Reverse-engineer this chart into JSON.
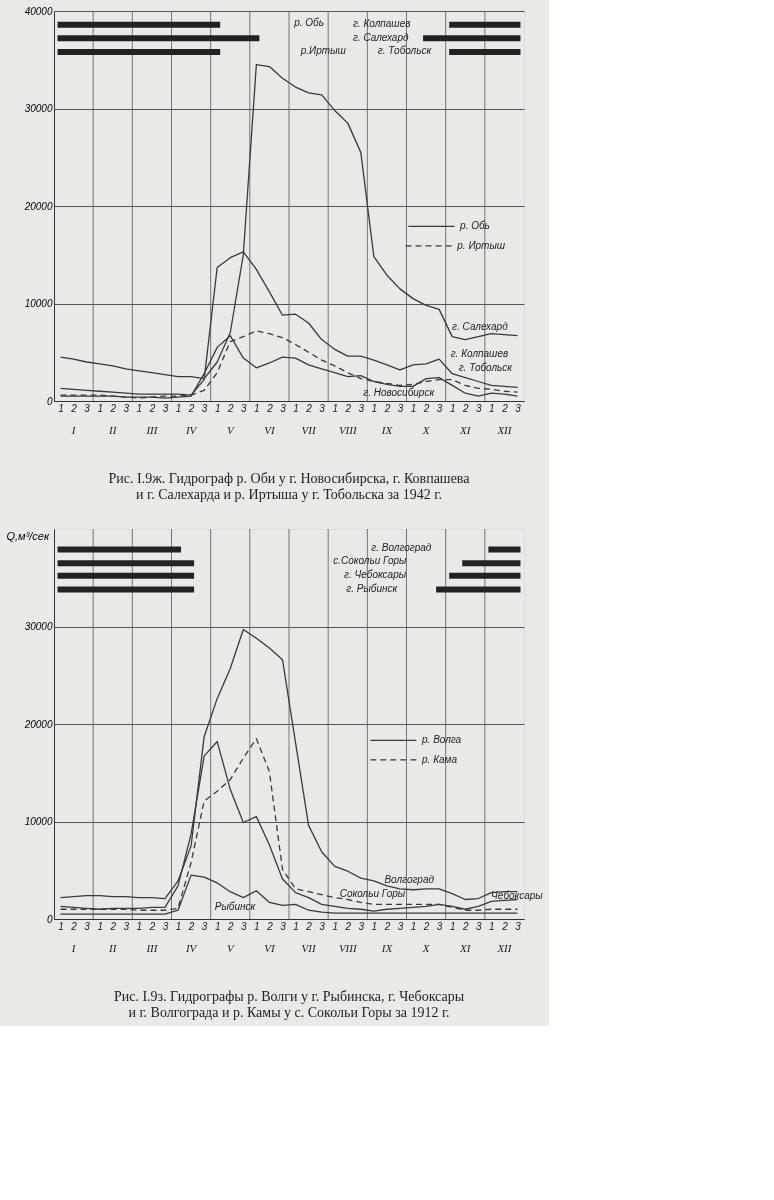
{
  "chart_data": [
    {
      "type": "line",
      "title": "Рис. I.9ж. Гидрограф р. Оби у г. Новосибирска, г. Ковпашева\nи г. Салехарда и р. Иртыша у г. Тобольска за 1942 г.",
      "categories": [
        "1",
        "2",
        "3",
        "1",
        "2",
        "3",
        "1",
        "2",
        "3",
        "1",
        "2",
        "3",
        "1",
        "2",
        "3",
        "1",
        "2",
        "3",
        "1",
        "2",
        "3",
        "1",
        "2",
        "3",
        "1",
        "2",
        "3",
        "1",
        "2",
        "3",
        "1",
        "2",
        "3",
        "1",
        "2",
        "3"
      ],
      "ylim": [
        0,
        40000
      ],
      "yticks": [
        0,
        10000,
        20000,
        30000,
        40000
      ],
      "grid": "y",
      "series": [
        {
          "line_style": "solid",
          "color": "#3a3a3a",
          "values": [
            4500,
            4300,
            4000,
            3800,
            3600,
            3300,
            3100,
            2900,
            2700,
            2500,
            2500,
            2300,
            4000,
            7000,
            15000,
            34500,
            34300,
            33100,
            32200,
            31600,
            31400,
            29800,
            28500,
            25500,
            14800,
            12900,
            11500,
            10500,
            9800,
            9400,
            6600,
            6300,
            6600,
            6900,
            6800,
            6700
          ]
        },
        {
          "line_style": "solid",
          "color": "#3a3a3a",
          "values": [
            1300,
            1200,
            1100,
            1000,
            900,
            800,
            700,
            700,
            700,
            700,
            600,
            2200,
            13700,
            14700,
            15300,
            13500,
            11200,
            8800,
            8900,
            8000,
            6300,
            5300,
            4600,
            4600,
            4200,
            3700,
            3200,
            3700,
            3800,
            4300,
            2800,
            2400,
            2000,
            1600,
            1500,
            1400
          ]
        },
        {
          "line_style": "solid",
          "color": "#3a3a3a",
          "values": [
            500,
            500,
            500,
            500,
            500,
            400,
            400,
            400,
            300,
            400,
            500,
            2800,
            5500,
            6700,
            4400,
            3400,
            3900,
            4500,
            4400,
            3700,
            3300,
            2900,
            2500,
            2600,
            2000,
            1700,
            1500,
            1500,
            2300,
            2400,
            1600,
            800,
            500,
            800,
            700,
            500
          ]
        },
        {
          "line_style": "dashed",
          "color": "#3a3a3a",
          "values": [
            600,
            600,
            600,
            600,
            500,
            400,
            300,
            400,
            500,
            500,
            600,
            1100,
            2900,
            6100,
            6600,
            7200,
            6900,
            6500,
            5800,
            5000,
            4200,
            3600,
            2900,
            2300,
            2000,
            1800,
            1600,
            1700,
            2000,
            2200,
            2200,
            1600,
            1300,
            1200,
            1000,
            900
          ]
        },
        {
          "color": "#222222",
          "values": [
            38600,
            38600,
            38600,
            38600,
            38600,
            38600,
            38600,
            38600,
            38600,
            38600,
            38600,
            38600,
            38600,
            null,
            null,
            null,
            null,
            null,
            null,
            null,
            null,
            null,
            null,
            null,
            null,
            null,
            null,
            null,
            null,
            null,
            38600,
            38600,
            38600,
            38600,
            38600,
            38600
          ]
        },
        {
          "color": "#222222",
          "values": [
            37200,
            37200,
            37200,
            37200,
            37200,
            37200,
            37200,
            37200,
            37200,
            37200,
            37200,
            37200,
            37200,
            37200,
            37200,
            37200,
            null,
            null,
            null,
            null,
            null,
            null,
            null,
            null,
            null,
            null,
            null,
            null,
            37200,
            37200,
            37200,
            37200,
            37200,
            37200,
            37200,
            37200
          ]
        },
        {
          "color": "#222222",
          "values": [
            35800,
            35800,
            35800,
            35800,
            35800,
            35800,
            35800,
            35800,
            35800,
            35800,
            35800,
            35800,
            35800,
            null,
            null,
            null,
            null,
            null,
            null,
            null,
            null,
            null,
            null,
            null,
            null,
            null,
            null,
            null,
            null,
            null,
            35800,
            35800,
            35800,
            35800,
            35800,
            35800
          ]
        }
      ],
      "annotations": [
        "р. Обь",
        "р. Иртыш",
        "г. Салехард",
        "г. Колпашев",
        "г. Тобольск",
        "г. Новосибирск",
        "р. Обь",
        "г. Колпашев",
        "г. Салехард",
        "р.Иртыш",
        "г. Тобольск",
        "I",
        "II",
        "III",
        "IV",
        "V",
        "VI",
        "VII",
        "VIII",
        "IX",
        "X",
        "XI",
        "XII"
      ]
    },
    {
      "type": "line",
      "title": "Рис. I.9з. Гидрографы р. Волги у г. Рыбинска, г. Чебоксары\nи г. Волгограда и р. Камы у с. Сокольи Горы за 1912 г.",
      "ylabel": "Q,м³/сек",
      "categories": [
        "1",
        "2",
        "3",
        "1",
        "2",
        "3",
        "1",
        "2",
        "3",
        "1",
        "2",
        "3",
        "1",
        "2",
        "3",
        "1",
        "2",
        "3",
        "1",
        "2",
        "3",
        "1",
        "2",
        "3",
        "1",
        "2",
        "3",
        "1",
        "2",
        "3",
        "1",
        "2",
        "3",
        "1",
        "2",
        "3"
      ],
      "ylim": [
        0,
        40000
      ],
      "yticks": [
        0,
        10000,
        20000,
        30000
      ],
      "grid": "y",
      "series": [
        {
          "line_style": "solid",
          "color": "#3a3a3a",
          "values": [
            2200,
            2300,
            2400,
            2400,
            2300,
            2300,
            2200,
            2200,
            2100,
            3900,
            7500,
            18700,
            22600,
            25700,
            29700,
            28800,
            27800,
            26600,
            18100,
            9600,
            6900,
            5400,
            4900,
            4200,
            3900,
            3400,
            3100,
            3000,
            3100,
            3100,
            2600,
            2000,
            2100,
            2700,
            2800,
            2800
          ]
        },
        {
          "line_style": "solid",
          "color": "#3a3a3a",
          "values": [
            1300,
            1200,
            1100,
            1000,
            1100,
            1100,
            1100,
            1200,
            1200,
            3400,
            8700,
            16700,
            18200,
            13300,
            9900,
            10500,
            7600,
            4100,
            2700,
            2200,
            1500,
            1300,
            1100,
            1000,
            800,
            1000,
            1100,
            1200,
            1300,
            1500,
            1300,
            1000,
            1300,
            1800,
            1900,
            2000
          ]
        },
        {
          "line_style": "dashed",
          "color": "#3a3a3a",
          "values": [
            1000,
            1000,
            1000,
            1000,
            1000,
            1000,
            900,
            900,
            900,
            1100,
            5800,
            12100,
            13100,
            14300,
            16500,
            18500,
            15100,
            5100,
            3100,
            2800,
            2500,
            2200,
            2000,
            1700,
            1500,
            1500,
            1500,
            1500,
            1500,
            1500,
            1200,
            900,
            900,
            1000,
            1000,
            1000
          ]
        },
        {
          "line_style": "solid",
          "color": "#3a3a3a",
          "values": [
            500,
            500,
            500,
            500,
            500,
            500,
            500,
            500,
            500,
            900,
            4500,
            4300,
            3700,
            2800,
            2200,
            2900,
            1700,
            1400,
            1500,
            900,
            700,
            600,
            600,
            600,
            600,
            600,
            600,
            600,
            600,
            600,
            600,
            600,
            600,
            600,
            600,
            600
          ]
        },
        {
          "color": "#222222",
          "values": [
            37900,
            37900,
            37900,
            37900,
            37900,
            37900,
            37900,
            37900,
            37900,
            37900,
            null,
            null,
            null,
            null,
            null,
            null,
            null,
            null,
            null,
            null,
            null,
            null,
            null,
            null,
            null,
            null,
            null,
            null,
            null,
            null,
            null,
            null,
            null,
            37900,
            37900,
            37900
          ]
        },
        {
          "color": "#222222",
          "values": [
            36500,
            36500,
            36500,
            36500,
            36500,
            36500,
            36500,
            36500,
            36500,
            36500,
            36500,
            null,
            null,
            null,
            null,
            null,
            null,
            null,
            null,
            null,
            null,
            null,
            null,
            null,
            null,
            null,
            null,
            null,
            null,
            null,
            null,
            36500,
            36500,
            36500,
            36500,
            36500
          ]
        },
        {
          "color": "#222222",
          "values": [
            35200,
            35200,
            35200,
            35200,
            35200,
            35200,
            35200,
            35200,
            35200,
            35200,
            35200,
            null,
            null,
            null,
            null,
            null,
            null,
            null,
            null,
            null,
            null,
            null,
            null,
            null,
            null,
            null,
            null,
            null,
            null,
            null,
            35200,
            35200,
            35200,
            35200,
            35200,
            35200
          ]
        },
        {
          "color": "#222222",
          "values": [
            33800,
            33800,
            33800,
            33800,
            33800,
            33800,
            33800,
            33800,
            33800,
            33800,
            33800,
            null,
            null,
            null,
            null,
            null,
            null,
            null,
            null,
            null,
            null,
            null,
            null,
            null,
            null,
            null,
            null,
            null,
            null,
            33800,
            33800,
            33800,
            33800,
            33800,
            33800,
            33800
          ]
        }
      ],
      "annotations": [
        "р. Волга",
        "р. Кама",
        "Волгоград",
        "Сокольи Горы",
        "Рыбинск",
        "Чебоксары",
        "г. Волгоград",
        "с.Сокольи Горы",
        "г. Чебоксары",
        "г. Рыбинск",
        "I",
        "II",
        "III",
        "IV",
        "V",
        "VI",
        "VII",
        "VIII",
        "IX",
        "X",
        "XI",
        "XII"
      ]
    }
  ]
}
